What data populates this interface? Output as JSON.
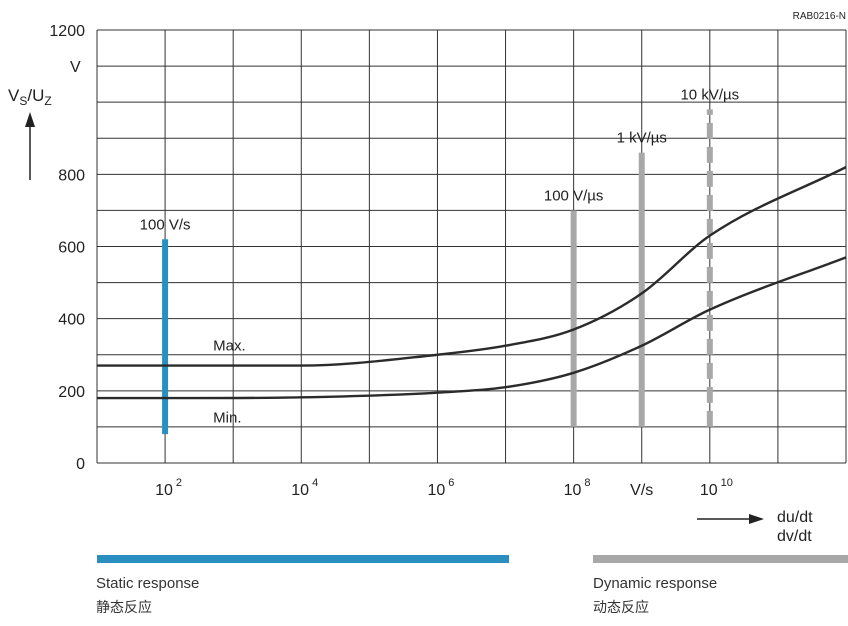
{
  "chart_data": {
    "type": "line",
    "figure_id": "RAB0216-N",
    "xlabel": "du/dt",
    "xlabel2": "dv/dt",
    "x_unit": "V/s",
    "ylabel_main": "V",
    "ylabel_sub_v": "S",
    "ylabel_sep": "/U",
    "ylabel_sub_u": "Z",
    "y_unit": "V",
    "xscale": "log",
    "xlim": [
      10,
      1000000000000
    ],
    "ylim": [
      0,
      1200
    ],
    "grid": true,
    "y_ticks": [
      {
        "value": 0,
        "label": "0"
      },
      {
        "value": 200,
        "label": "200"
      },
      {
        "value": 400,
        "label": "400"
      },
      {
        "value": 600,
        "label": "600"
      },
      {
        "value": 800,
        "label": "800"
      },
      {
        "value": 1200,
        "label": "1200"
      }
    ],
    "x_tick_labels": [
      {
        "exp": 2,
        "base": "10",
        "sup": "2"
      },
      {
        "exp": 4,
        "base": "10",
        "sup": "4"
      },
      {
        "exp": 6,
        "base": "10",
        "sup": "6"
      },
      {
        "exp": 8,
        "base": "10",
        "sup": "8"
      },
      {
        "exp": 10,
        "base": "10",
        "sup": "10"
      }
    ],
    "series": [
      {
        "name": "Max.",
        "x": [
          10,
          100,
          10000,
          1000000,
          10000000,
          100000000,
          1000000000,
          10000000000,
          1000000000000
        ],
        "y": [
          270,
          270,
          270,
          300,
          325,
          370,
          470,
          630,
          820
        ]
      },
      {
        "name": "Min.",
        "x": [
          10,
          100,
          10000,
          1000000,
          10000000,
          100000000,
          1000000000,
          10000000000,
          1000000000000
        ],
        "y": [
          180,
          180,
          182,
          195,
          210,
          250,
          325,
          425,
          570
        ]
      }
    ],
    "markers": [
      {
        "label": "100 V/s",
        "x": 100,
        "y0": 80,
        "y1": 620,
        "color": "#2a8fc0",
        "style": "solid"
      },
      {
        "label": "100 V/µs",
        "x": 100000000,
        "y0": 100,
        "y1": 700,
        "color": "#a8a8a8",
        "style": "solid"
      },
      {
        "label": "1 kV/µs",
        "x": 1000000000,
        "y0": 100,
        "y1": 860,
        "color": "#a8a8a8",
        "style": "solid"
      },
      {
        "label": "10 kV/µs",
        "x": 10000000000,
        "y0": 100,
        "y1": 980,
        "color": "#a8a8a8",
        "style": "dashed"
      }
    ]
  },
  "legend": {
    "static": {
      "title": "Static response",
      "title_cn": "静态反应",
      "color": "#2a8fc0"
    },
    "dynamic": {
      "title": "Dynamic response",
      "title_cn": "动态反应",
      "color": "#a8a8a8"
    }
  }
}
